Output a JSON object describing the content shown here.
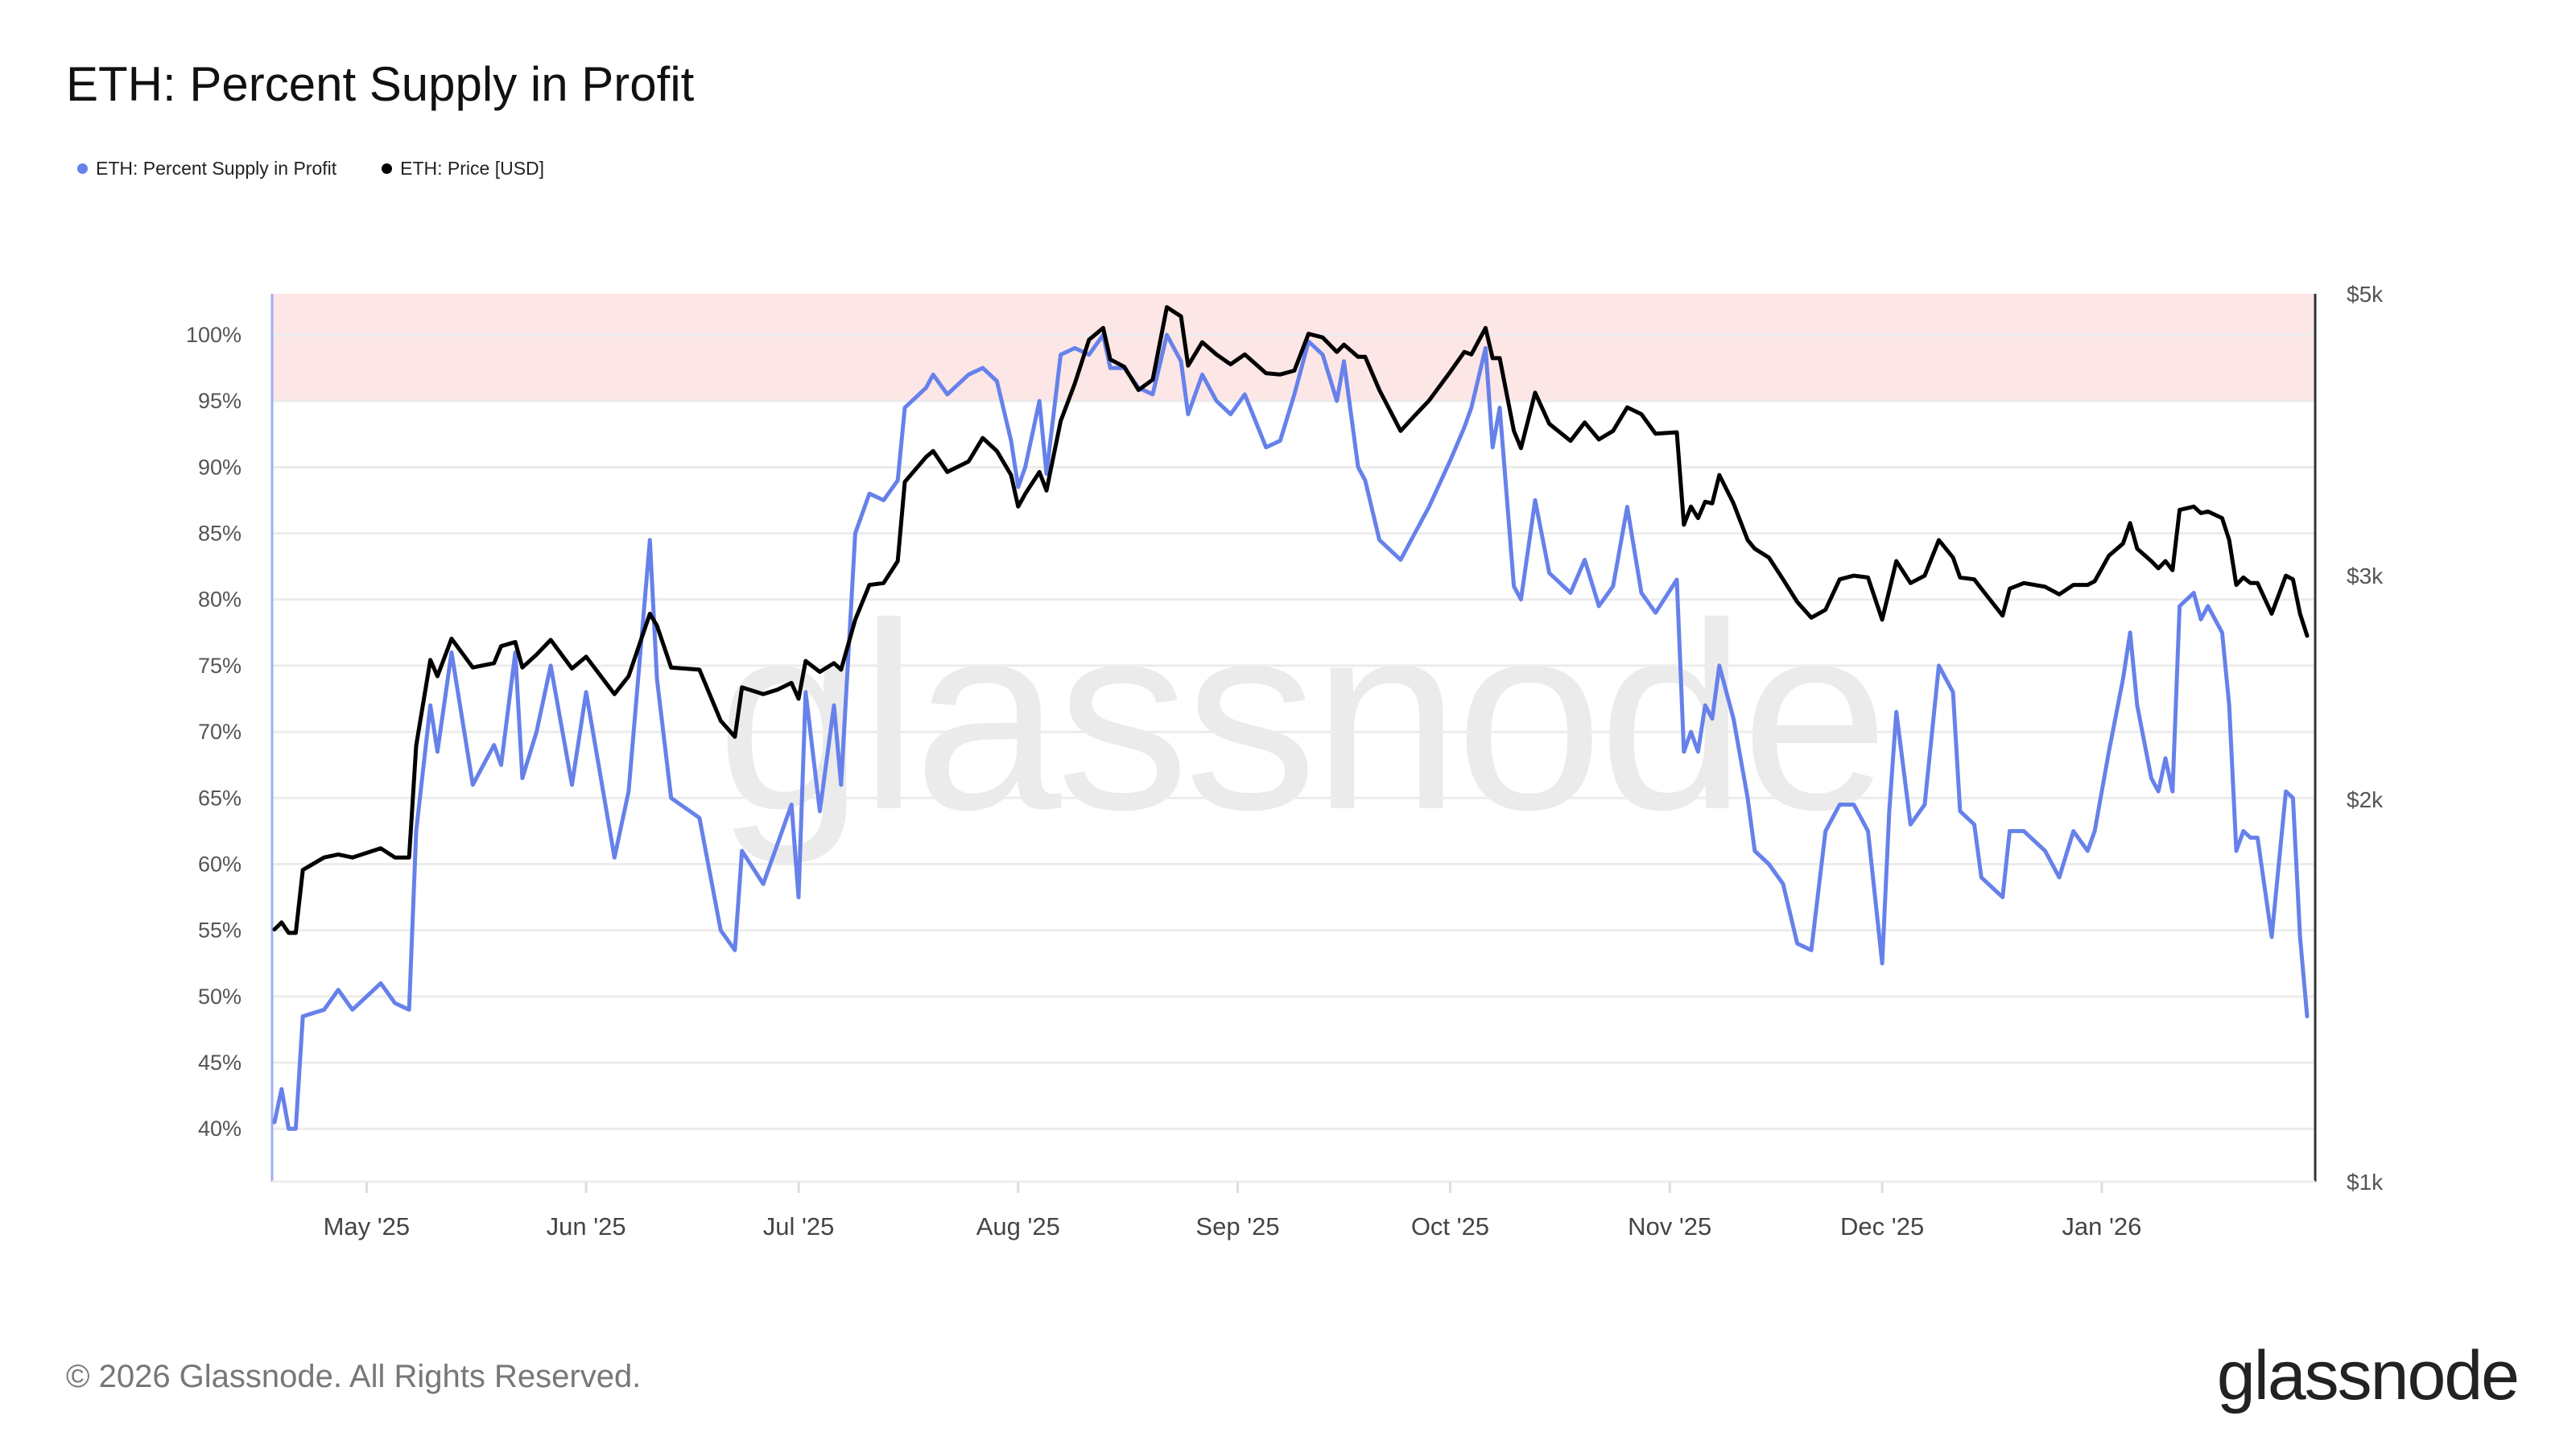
{
  "title": "ETH: Percent Supply in Profit",
  "legend": [
    {
      "label": "ETH: Percent Supply in Profit",
      "color": "#6681ea"
    },
    {
      "label": "ETH: Price [USD]",
      "color": "#000000"
    }
  ],
  "footer": "© 2026 Glassnode. All Rights Reserved.",
  "logo": "glassnode",
  "watermark": "glassnode",
  "chart_data": {
    "type": "line",
    "title": "ETH: Percent Supply in Profit",
    "x_range": [
      "2025-04-18",
      "2026-01-30"
    ],
    "x_ticks": [
      {
        "date": "2025-05-01",
        "label": "May '25"
      },
      {
        "date": "2025-06-01",
        "label": "Jun '25"
      },
      {
        "date": "2025-07-01",
        "label": "Jul '25"
      },
      {
        "date": "2025-08-01",
        "label": "Aug '25"
      },
      {
        "date": "2025-09-01",
        "label": "Sep '25"
      },
      {
        "date": "2025-10-01",
        "label": "Oct '25"
      },
      {
        "date": "2025-11-01",
        "label": "Nov '25"
      },
      {
        "date": "2025-12-01",
        "label": "Dec '25"
      },
      {
        "date": "2026-01-01",
        "label": "Jan '26"
      }
    ],
    "y_left": {
      "range": [
        36,
        103.1
      ],
      "ticks": [
        40,
        45,
        50,
        55,
        60,
        65,
        70,
        75,
        80,
        85,
        90,
        95,
        100
      ],
      "tick_labels": [
        "40%",
        "45%",
        "50%",
        "55%",
        "60%",
        "65%",
        "70%",
        "75%",
        "80%",
        "85%",
        "90%",
        "95%",
        "100%"
      ]
    },
    "y_right": {
      "scale": "log",
      "range": [
        1000,
        5000
      ],
      "ticks": [
        1000,
        2000,
        3000,
        5000
      ],
      "tick_labels": [
        "$1k",
        "$2k",
        "$3k",
        "$5k"
      ]
    },
    "grid": true,
    "highlight_band": {
      "from": 95,
      "to": 103.1,
      "color": "#fde6e6",
      "line_color": "#f0a0a0"
    },
    "legend_position": "top-left",
    "dates": [
      "2025-04-18",
      "2025-04-19",
      "2025-04-20",
      "2025-04-21",
      "2025-04-22",
      "2025-04-25",
      "2025-04-27",
      "2025-04-29",
      "2025-05-03",
      "2025-05-05",
      "2025-05-07",
      "2025-05-08",
      "2025-05-10",
      "2025-05-11",
      "2025-05-13",
      "2025-05-16",
      "2025-05-19",
      "2025-05-20",
      "2025-05-22",
      "2025-05-23",
      "2025-05-25",
      "2025-05-27",
      "2025-05-30",
      "2025-06-01",
      "2025-06-05",
      "2025-06-07",
      "2025-06-10",
      "2025-06-11",
      "2025-06-13",
      "2025-06-17",
      "2025-06-20",
      "2025-06-22",
      "2025-06-23",
      "2025-06-26",
      "2025-06-28",
      "2025-06-30",
      "2025-07-01",
      "2025-07-02",
      "2025-07-04",
      "2025-07-06",
      "2025-07-07",
      "2025-07-09",
      "2025-07-11",
      "2025-07-13",
      "2025-07-15",
      "2025-07-16",
      "2025-07-19",
      "2025-07-20",
      "2025-07-22",
      "2025-07-25",
      "2025-07-27",
      "2025-07-29",
      "2025-07-31",
      "2025-08-01",
      "2025-08-02",
      "2025-08-04",
      "2025-08-05",
      "2025-08-07",
      "2025-08-09",
      "2025-08-11",
      "2025-08-13",
      "2025-08-14",
      "2025-08-16",
      "2025-08-18",
      "2025-08-20",
      "2025-08-22",
      "2025-08-24",
      "2025-08-25",
      "2025-08-27",
      "2025-08-29",
      "2025-08-31",
      "2025-09-02",
      "2025-09-05",
      "2025-09-07",
      "2025-09-09",
      "2025-09-11",
      "2025-09-13",
      "2025-09-15",
      "2025-09-16",
      "2025-09-18",
      "2025-09-19",
      "2025-09-21",
      "2025-09-24",
      "2025-09-26",
      "2025-09-28",
      "2025-10-01",
      "2025-10-03",
      "2025-10-04",
      "2025-10-06",
      "2025-10-07",
      "2025-10-08",
      "2025-10-10",
      "2025-10-11",
      "2025-10-13",
      "2025-10-15",
      "2025-10-18",
      "2025-10-20",
      "2025-10-22",
      "2025-10-24",
      "2025-10-26",
      "2025-10-28",
      "2025-10-30",
      "2025-11-02",
      "2025-11-03",
      "2025-11-04",
      "2025-11-05",
      "2025-11-06",
      "2025-11-07",
      "2025-11-08",
      "2025-11-10",
      "2025-11-12",
      "2025-11-13",
      "2025-11-15",
      "2025-11-17",
      "2025-11-19",
      "2025-11-21",
      "2025-11-23",
      "2025-11-25",
      "2025-11-27",
      "2025-11-29",
      "2025-12-01",
      "2025-12-02",
      "2025-12-03",
      "2025-12-05",
      "2025-12-07",
      "2025-12-09",
      "2025-12-11",
      "2025-12-12",
      "2025-12-14",
      "2025-12-15",
      "2025-12-18",
      "2025-12-19",
      "2025-12-21",
      "2025-12-24",
      "2025-12-26",
      "2025-12-28",
      "2025-12-30",
      "2025-12-31",
      "2026-01-02",
      "2026-01-04",
      "2026-01-05",
      "2026-01-06",
      "2026-01-08",
      "2026-01-09",
      "2026-01-10",
      "2026-01-11",
      "2026-01-12",
      "2026-01-14",
      "2026-01-15",
      "2026-01-16",
      "2026-01-18",
      "2026-01-19",
      "2026-01-20",
      "2026-01-21",
      "2026-01-22",
      "2026-01-23",
      "2026-01-25",
      "2026-01-27",
      "2026-01-28",
      "2026-01-29",
      "2026-01-30"
    ],
    "series": [
      {
        "name": "ETH: Percent Supply in Profit",
        "axis": "left",
        "color": "#6681ea",
        "values": [
          40.5,
          43,
          40,
          40,
          48.5,
          49,
          50.5,
          49,
          51,
          49.5,
          49,
          62.5,
          72,
          68.5,
          76,
          66,
          69,
          67.5,
          76,
          66.5,
          70,
          75,
          66,
          73,
          60.5,
          65.5,
          84.5,
          74,
          65,
          63.5,
          55,
          53.5,
          61,
          58.5,
          61.5,
          64.5,
          57.5,
          73,
          64,
          72,
          66,
          85,
          88,
          87.5,
          89,
          94.5,
          96,
          97,
          95.5,
          97,
          97.5,
          96.5,
          92,
          88.5,
          90,
          95,
          89.5,
          98.5,
          99,
          98.5,
          100,
          97.5,
          97.5,
          96,
          95.5,
          100,
          98,
          94,
          97,
          95,
          94,
          95.5,
          91.5,
          92,
          95.5,
          99.5,
          98.5,
          95,
          98,
          90,
          89,
          84.5,
          83,
          85,
          87,
          90.5,
          93,
          94.5,
          99,
          91.5,
          94.5,
          81,
          80,
          87.5,
          82,
          80.5,
          83,
          79.5,
          81,
          87,
          80.5,
          79,
          81.5,
          68.5,
          70,
          68.5,
          72,
          71,
          75,
          71,
          65,
          61,
          60,
          58.5,
          54,
          53.5,
          62.5,
          64.5,
          64.5,
          62.5,
          52.5,
          64,
          71.5,
          63,
          64.5,
          75,
          73,
          64,
          63,
          59,
          57.5,
          62.5,
          62.5,
          61,
          59,
          62.5,
          61,
          62.5,
          68.5,
          74,
          77.5,
          72,
          66.5,
          65.5,
          68,
          65.5,
          79.5,
          80.5,
          78.5,
          79.5,
          77.5,
          72,
          61,
          62.5,
          62,
          62,
          54.5,
          65.5,
          65,
          54.5,
          48.5
        ]
      },
      {
        "name": "ETH: Price [USD]",
        "axis": "right",
        "color": "#000000",
        "values": [
          1580,
          1600,
          1570,
          1570,
          1760,
          1800,
          1810,
          1800,
          1830,
          1800,
          1800,
          2205,
          2575,
          2500,
          2676,
          2540,
          2560,
          2640,
          2660,
          2540,
          2600,
          2670,
          2535,
          2590,
          2420,
          2500,
          2800,
          2740,
          2540,
          2530,
          2306,
          2240,
          2450,
          2420,
          2440,
          2470,
          2400,
          2570,
          2520,
          2560,
          2530,
          2770,
          2950,
          2960,
          3080,
          3556,
          3720,
          3760,
          3620,
          3690,
          3850,
          3760,
          3600,
          3400,
          3480,
          3620,
          3500,
          3970,
          4250,
          4600,
          4700,
          4440,
          4380,
          4200,
          4280,
          4880,
          4800,
          4390,
          4580,
          4480,
          4400,
          4480,
          4330,
          4320,
          4350,
          4650,
          4620,
          4500,
          4560,
          4460,
          4460,
          4200,
          3900,
          4010,
          4120,
          4340,
          4500,
          4480,
          4700,
          4450,
          4450,
          3900,
          3780,
          4180,
          3950,
          3830,
          3960,
          3840,
          3900,
          4070,
          4020,
          3880,
          3890,
          3290,
          3400,
          3330,
          3430,
          3420,
          3600,
          3420,
          3200,
          3150,
          3100,
          2980,
          2860,
          2780,
          2820,
          2980,
          3000,
          2990,
          2770,
          2920,
          3080,
          2960,
          3000,
          3200,
          3100,
          2990,
          2980,
          2930,
          2790,
          2930,
          2960,
          2940,
          2900,
          2950,
          2950,
          2970,
          3110,
          3180,
          3300,
          3150,
          3080,
          3040,
          3080,
          3030,
          3380,
          3400,
          3360,
          3370,
          3330,
          3200,
          2950,
          2990,
          2960,
          2960,
          2800,
          3000,
          2980,
          2800,
          2690
        ]
      }
    ]
  }
}
